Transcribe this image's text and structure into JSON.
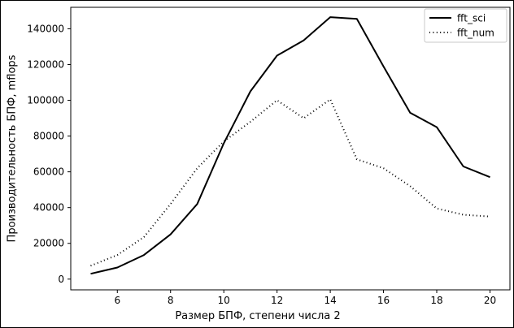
{
  "figure": {
    "background": "#ffffff",
    "border_color": "#000000",
    "text_color": "#000000"
  },
  "chart_data": {
    "type": "line",
    "title": "",
    "xlabel": "Размер БПФ, степени числа 2",
    "ylabel": "Производительность БПФ, mflops",
    "x": [
      5,
      6,
      7,
      8,
      9,
      10,
      11,
      12,
      13,
      14,
      15,
      16,
      17,
      18,
      19,
      20
    ],
    "series": [
      {
        "name": "fft_sci",
        "style": "solid",
        "color": "#000000",
        "values": [
          3000,
          6500,
          13500,
          25000,
          42000,
          76000,
          105000,
          125000,
          133500,
          146500,
          145500,
          119000,
          93000,
          85000,
          63000,
          57000
        ]
      },
      {
        "name": "fft_num",
        "style": "dotted",
        "color": "#000000",
        "values": [
          7500,
          13500,
          23500,
          42000,
          62000,
          77000,
          88000,
          100000,
          90000,
          100500,
          67000,
          62000,
          52000,
          39500,
          36000,
          35000
        ]
      }
    ],
    "xticks": [
      6,
      8,
      10,
      12,
      14,
      16,
      18,
      20
    ],
    "yticks": [
      0,
      20000,
      40000,
      60000,
      80000,
      100000,
      120000,
      140000
    ],
    "xlim": [
      4.25,
      20.75
    ],
    "ylim": [
      -6000,
      152000
    ],
    "grid": false,
    "legend": {
      "position": "top-right",
      "frame": true,
      "edge_color": "#c8c8c8",
      "entries": [
        "fft_sci",
        "fft_num"
      ]
    }
  }
}
